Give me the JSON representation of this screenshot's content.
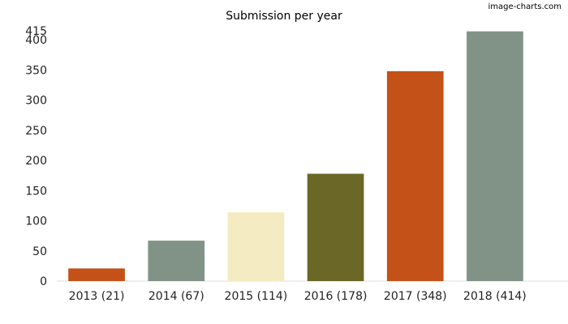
{
  "watermark": "image-charts.com",
  "chart_data": {
    "type": "bar",
    "title": "Submission per year",
    "xlabel": "",
    "ylabel": "",
    "categories": [
      "2013 (21)",
      "2014 (67)",
      "2015 (114)",
      "2016 (178)",
      "2017 (348)",
      "2018 (414)"
    ],
    "values": [
      21,
      67,
      114,
      178,
      348,
      414
    ],
    "colors": [
      "#C45117",
      "#819386",
      "#F4EBC3",
      "#6B6726",
      "#C45117",
      "#819386"
    ],
    "ylim": [
      0,
      415
    ],
    "yticks": [
      0,
      50,
      100,
      150,
      200,
      250,
      300,
      350,
      400,
      415
    ],
    "grid": false,
    "legend": "none"
  }
}
